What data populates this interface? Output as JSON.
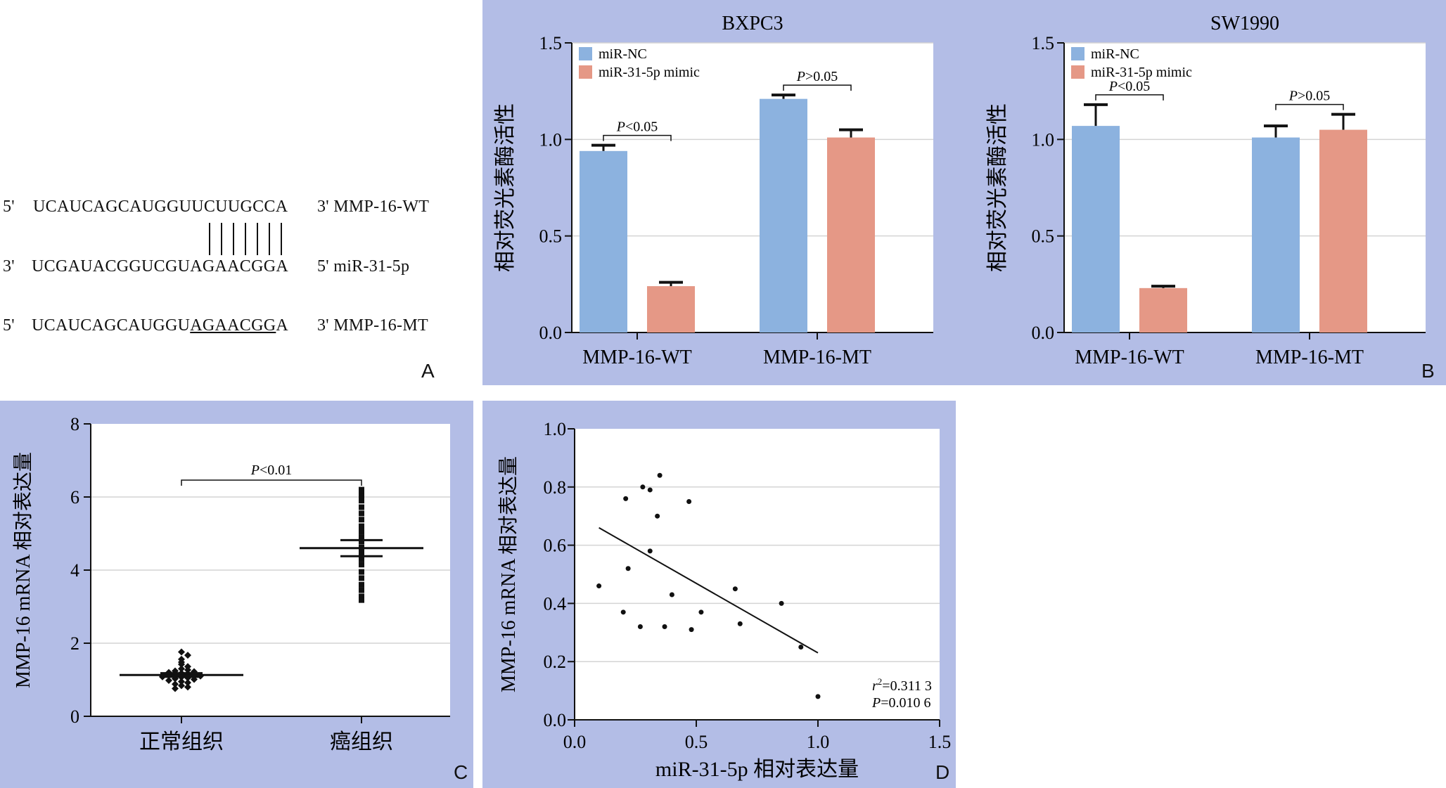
{
  "panelA": {
    "letter": "A",
    "rows": [
      {
        "end5": "5'",
        "seq": "UCAUCAGCAUGGUUCUUGCCA",
        "end3": "3' MMP-16-WT"
      },
      {
        "end5": "3'",
        "seq": "UCGAUACGGUCGUAGAACGGA",
        "end3": "5' miR-31-5p"
      },
      {
        "end5": "5'",
        "seq_pre": "UCAUCAGCAUGGU",
        "seq_mut": "AGAACGG",
        "seq_post": "A",
        "end3": "3' MMP-16-MT"
      }
    ]
  },
  "panelB": {
    "letter": "B"
  },
  "panelC": {
    "letter": "C"
  },
  "panelD": {
    "letter": "D"
  },
  "colors": {
    "panel_bg": "#b3bde6",
    "nc": "#8cb2df",
    "mimic": "#e59886",
    "axis": "#111111",
    "grid": "#d4d4d4"
  },
  "chart_data": [
    {
      "type": "bar",
      "title": "BXPC3",
      "ylabel": "相对荧光素酶活性",
      "ylim": [
        0,
        1.5
      ],
      "yticks": [
        "0.0",
        "0.5",
        "1.0",
        "1.5"
      ],
      "categories": [
        "MMP-16-WT",
        "MMP-16-MT"
      ],
      "series": [
        {
          "name": "miR-NC",
          "values": [
            0.94,
            1.21
          ],
          "errors": [
            0.03,
            0.02
          ]
        },
        {
          "name": "miR-31-5p mimic",
          "values": [
            0.24,
            1.01
          ],
          "errors": [
            0.02,
            0.04
          ]
        }
      ],
      "annotations": [
        {
          "p": "P",
          "rest": "<0.05"
        },
        {
          "p": "P",
          "rest": ">0.05"
        }
      ],
      "legend": "top-left"
    },
    {
      "type": "bar",
      "title": "SW1990",
      "ylabel": "相对荧光素酶活性",
      "ylim": [
        0,
        1.5
      ],
      "yticks": [
        "0.0",
        "0.5",
        "1.0",
        "1.5"
      ],
      "categories": [
        "MMP-16-WT",
        "MMP-16-MT"
      ],
      "series": [
        {
          "name": "miR-NC",
          "values": [
            1.07,
            1.01
          ],
          "errors": [
            0.11,
            0.06
          ]
        },
        {
          "name": "miR-31-5p mimic",
          "values": [
            0.23,
            1.05
          ],
          "errors": [
            0.01,
            0.08
          ]
        }
      ],
      "annotations": [
        {
          "p": "P",
          "rest": "<0.05"
        },
        {
          "p": "P",
          "rest": ">0.05"
        }
      ],
      "legend": "top-left"
    },
    {
      "type": "scatter",
      "ylabel": "MMP-16 mRNA 相对表达量",
      "ylim": [
        0,
        8
      ],
      "yticks": [
        "0",
        "2",
        "4",
        "6",
        "8"
      ],
      "categories": [
        "正常组织",
        "癌组织"
      ],
      "groups": [
        {
          "name": "正常组织",
          "mean": 1.13,
          "sem": 0.05,
          "points": [
            1.76,
            1.67,
            1.56,
            1.48,
            1.42,
            1.36,
            1.3,
            1.27,
            1.24,
            1.22,
            1.2,
            1.18,
            1.17,
            1.15,
            1.13,
            1.12,
            1.1,
            1.08,
            1.07,
            1.05,
            1.03,
            1.01,
            0.98,
            0.95,
            0.92,
            0.88,
            0.84,
            0.8,
            0.76
          ]
        },
        {
          "name": "癌组织",
          "mean": 4.6,
          "sem": 0.22,
          "points": [
            6.2,
            6.12,
            6.02,
            5.9,
            5.72,
            5.55,
            5.38,
            5.2,
            5.05,
            4.9,
            4.78,
            4.62,
            4.48,
            4.3,
            4.15,
            3.95,
            3.78,
            3.6,
            3.45,
            3.28,
            3.18
          ]
        }
      ],
      "annotation": {
        "p": "P",
        "rest": "<0.01"
      }
    },
    {
      "type": "scatter",
      "xlabel": "miR-31-5p 相对表达量",
      "ylabel": "MMP-16 mRNA 相对表达量",
      "xlim": [
        0,
        1.5
      ],
      "ylim": [
        0,
        1.0
      ],
      "xticks": [
        "0.0",
        "0.5",
        "1.0",
        "1.5"
      ],
      "yticks": [
        "0.0",
        "0.2",
        "0.4",
        "0.6",
        "0.8",
        "1.0"
      ],
      "points": [
        [
          0.1,
          0.46
        ],
        [
          0.2,
          0.37
        ],
        [
          0.21,
          0.76
        ],
        [
          0.22,
          0.52
        ],
        [
          0.27,
          0.32
        ],
        [
          0.28,
          0.8
        ],
        [
          0.31,
          0.79
        ],
        [
          0.31,
          0.58
        ],
        [
          0.34,
          0.7
        ],
        [
          0.35,
          0.84
        ],
        [
          0.37,
          0.32
        ],
        [
          0.4,
          0.43
        ],
        [
          0.47,
          0.75
        ],
        [
          0.48,
          0.31
        ],
        [
          0.52,
          0.37
        ],
        [
          0.66,
          0.45
        ],
        [
          0.68,
          0.33
        ],
        [
          0.85,
          0.4
        ],
        [
          0.93,
          0.25
        ],
        [
          1.0,
          0.08
        ]
      ],
      "fit": {
        "x": [
          0.1,
          1.0
        ],
        "y": [
          0.66,
          0.23
        ]
      },
      "stats": {
        "r_prefix": "r",
        "r_sup": "2",
        "r_value": "=0.311 3",
        "p_prefix": "P",
        "p_value": "=0.010 6"
      }
    }
  ]
}
